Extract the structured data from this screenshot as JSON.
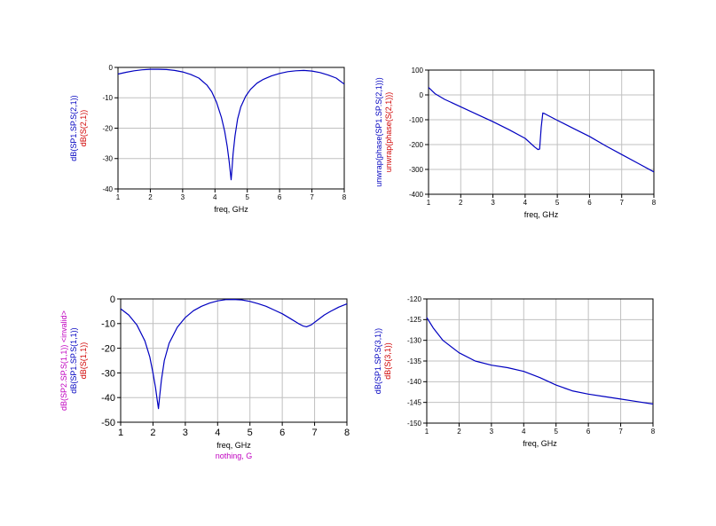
{
  "colors": {
    "background": "#ffffff",
    "grid": "#c0c0c0",
    "frame": "#000000",
    "trace": "#0000c0",
    "label_blue": "#0000c0",
    "label_red": "#d00000",
    "label_magenta": "#c000c0",
    "text": "#000000"
  },
  "chart_data": [
    {
      "type": "line",
      "title": "",
      "xlabel": "freq, GHz",
      "ylabels": [
        {
          "text": "dB(SP1.SP.S(2,1))",
          "color": "blue"
        },
        {
          "text": "dB(S(2,1))",
          "color": "red"
        }
      ],
      "xlim": [
        1,
        8
      ],
      "ylim": [
        -40,
        0
      ],
      "x_ticks": [
        "1",
        "2",
        "3",
        "4",
        "5",
        "6",
        "7",
        "8"
      ],
      "y_ticks": [
        "0",
        "-10",
        "-20",
        "-30",
        "-40"
      ],
      "grid": true,
      "series": [
        {
          "x": [
            1.0,
            1.25,
            1.5,
            1.75,
            2.0,
            2.25,
            2.5,
            2.75,
            3.0,
            3.25,
            3.5,
            3.75,
            3.9,
            4.05,
            4.2,
            4.3,
            4.38,
            4.44,
            4.47,
            4.5,
            4.53,
            4.56,
            4.62,
            4.7,
            4.8,
            4.95,
            5.1,
            5.3,
            5.5,
            5.75,
            6.0,
            6.25,
            6.5,
            6.75,
            7.0,
            7.25,
            7.5,
            7.75,
            8.0
          ],
          "values": [
            -2.2,
            -1.6,
            -1.1,
            -0.8,
            -0.6,
            -0.6,
            -0.7,
            -1.0,
            -1.5,
            -2.3,
            -3.5,
            -5.8,
            -8.0,
            -11.5,
            -16.5,
            -21.0,
            -26.0,
            -31.0,
            -34.0,
            -37.0,
            -33.0,
            -28.5,
            -22.5,
            -17.0,
            -13.0,
            -9.5,
            -7.2,
            -5.2,
            -3.9,
            -2.8,
            -2.0,
            -1.4,
            -1.1,
            -1.0,
            -1.2,
            -1.7,
            -2.5,
            -3.5,
            -5.5
          ]
        }
      ]
    },
    {
      "type": "line",
      "title": "",
      "xlabel": "freq, GHz",
      "ylabels": [
        {
          "text": "unwrap(phase(SP1.SP.S(2,1)))",
          "color": "blue"
        },
        {
          "text": "unwrap(phase(S(2,1)))",
          "color": "red"
        }
      ],
      "xlim": [
        1,
        8
      ],
      "ylim": [
        -400,
        100
      ],
      "x_ticks": [
        "1",
        "2",
        "3",
        "4",
        "5",
        "6",
        "7",
        "8"
      ],
      "y_ticks": [
        "100",
        "0",
        "-100",
        "-200",
        "-300",
        "-400"
      ],
      "grid": true,
      "series": [
        {
          "x": [
            1.0,
            1.2,
            1.5,
            2.0,
            2.5,
            3.0,
            3.5,
            4.0,
            4.3,
            4.4,
            4.45,
            4.5,
            4.55,
            4.6,
            4.7,
            5.0,
            5.5,
            6.0,
            6.5,
            7.0,
            7.5,
            8.0
          ],
          "values": [
            30,
            5,
            -18,
            -48,
            -78,
            -108,
            -140,
            -175,
            -210,
            -220,
            -218,
            -130,
            -73,
            -75,
            -82,
            -102,
            -135,
            -167,
            -205,
            -240,
            -275,
            -310
          ]
        }
      ]
    },
    {
      "type": "line",
      "title": "",
      "xlabel": "freq, GHz",
      "xlabel_secondary": "nothing, G",
      "ylabels": [
        {
          "text": "dB(SP2.SP.S(1,1)) <invalid>",
          "color": "magenta"
        },
        {
          "text": "dB(SP1.SP.S(1,1))",
          "color": "blue"
        },
        {
          "text": "dB(S(1,1))",
          "color": "red"
        }
      ],
      "xlim": [
        1,
        8
      ],
      "ylim": [
        -50,
        0
      ],
      "x_ticks": [
        "1",
        "2",
        "3",
        "4",
        "5",
        "6",
        "7",
        "8"
      ],
      "y_ticks": [
        "0",
        "-10",
        "-20",
        "-30",
        "-40",
        "-50"
      ],
      "grid": true,
      "series": [
        {
          "x": [
            1.0,
            1.25,
            1.5,
            1.75,
            1.9,
            2.0,
            2.08,
            2.13,
            2.17,
            2.21,
            2.26,
            2.35,
            2.5,
            2.75,
            3.0,
            3.25,
            3.5,
            3.75,
            4.0,
            4.25,
            4.5,
            4.75,
            5.0,
            5.25,
            5.5,
            5.75,
            6.0,
            6.25,
            6.5,
            6.65,
            6.75,
            6.9,
            7.1,
            7.3,
            7.5,
            7.75,
            8.0
          ],
          "values": [
            -4.0,
            -6.5,
            -10.5,
            -17.0,
            -23.5,
            -30.0,
            -36.0,
            -41.0,
            -44.5,
            -39.0,
            -33.0,
            -25.0,
            -18.0,
            -11.5,
            -7.5,
            -4.8,
            -3.0,
            -1.7,
            -0.8,
            -0.3,
            -0.2,
            -0.4,
            -1.0,
            -1.9,
            -3.0,
            -4.5,
            -6.0,
            -8.0,
            -10.0,
            -11.0,
            -11.3,
            -10.5,
            -8.5,
            -6.5,
            -5.0,
            -3.3,
            -2.0
          ]
        }
      ]
    },
    {
      "type": "line",
      "title": "",
      "xlabel": "freq, GHz",
      "ylabels": [
        {
          "text": "dB(SP1.SP.S(3,1))",
          "color": "blue"
        },
        {
          "text": "dB(S(3,1))",
          "color": "red"
        }
      ],
      "xlim": [
        1,
        8
      ],
      "ylim": [
        -150,
        -120
      ],
      "x_ticks": [
        "1",
        "2",
        "3",
        "4",
        "5",
        "6",
        "7",
        "8"
      ],
      "y_ticks": [
        "-120",
        "-125",
        "-130",
        "-135",
        "-140",
        "-145",
        "-150"
      ],
      "grid": true,
      "series": [
        {
          "x": [
            1.0,
            1.2,
            1.5,
            2.0,
            2.5,
            3.0,
            3.5,
            4.0,
            4.5,
            5.0,
            5.5,
            6.0,
            6.5,
            7.0,
            7.5,
            8.0
          ],
          "values": [
            -124.5,
            -127.0,
            -130.0,
            -133.0,
            -135.0,
            -136.0,
            -136.6,
            -137.5,
            -139.0,
            -140.8,
            -142.2,
            -143.0,
            -143.6,
            -144.2,
            -144.8,
            -145.4
          ]
        }
      ]
    }
  ]
}
